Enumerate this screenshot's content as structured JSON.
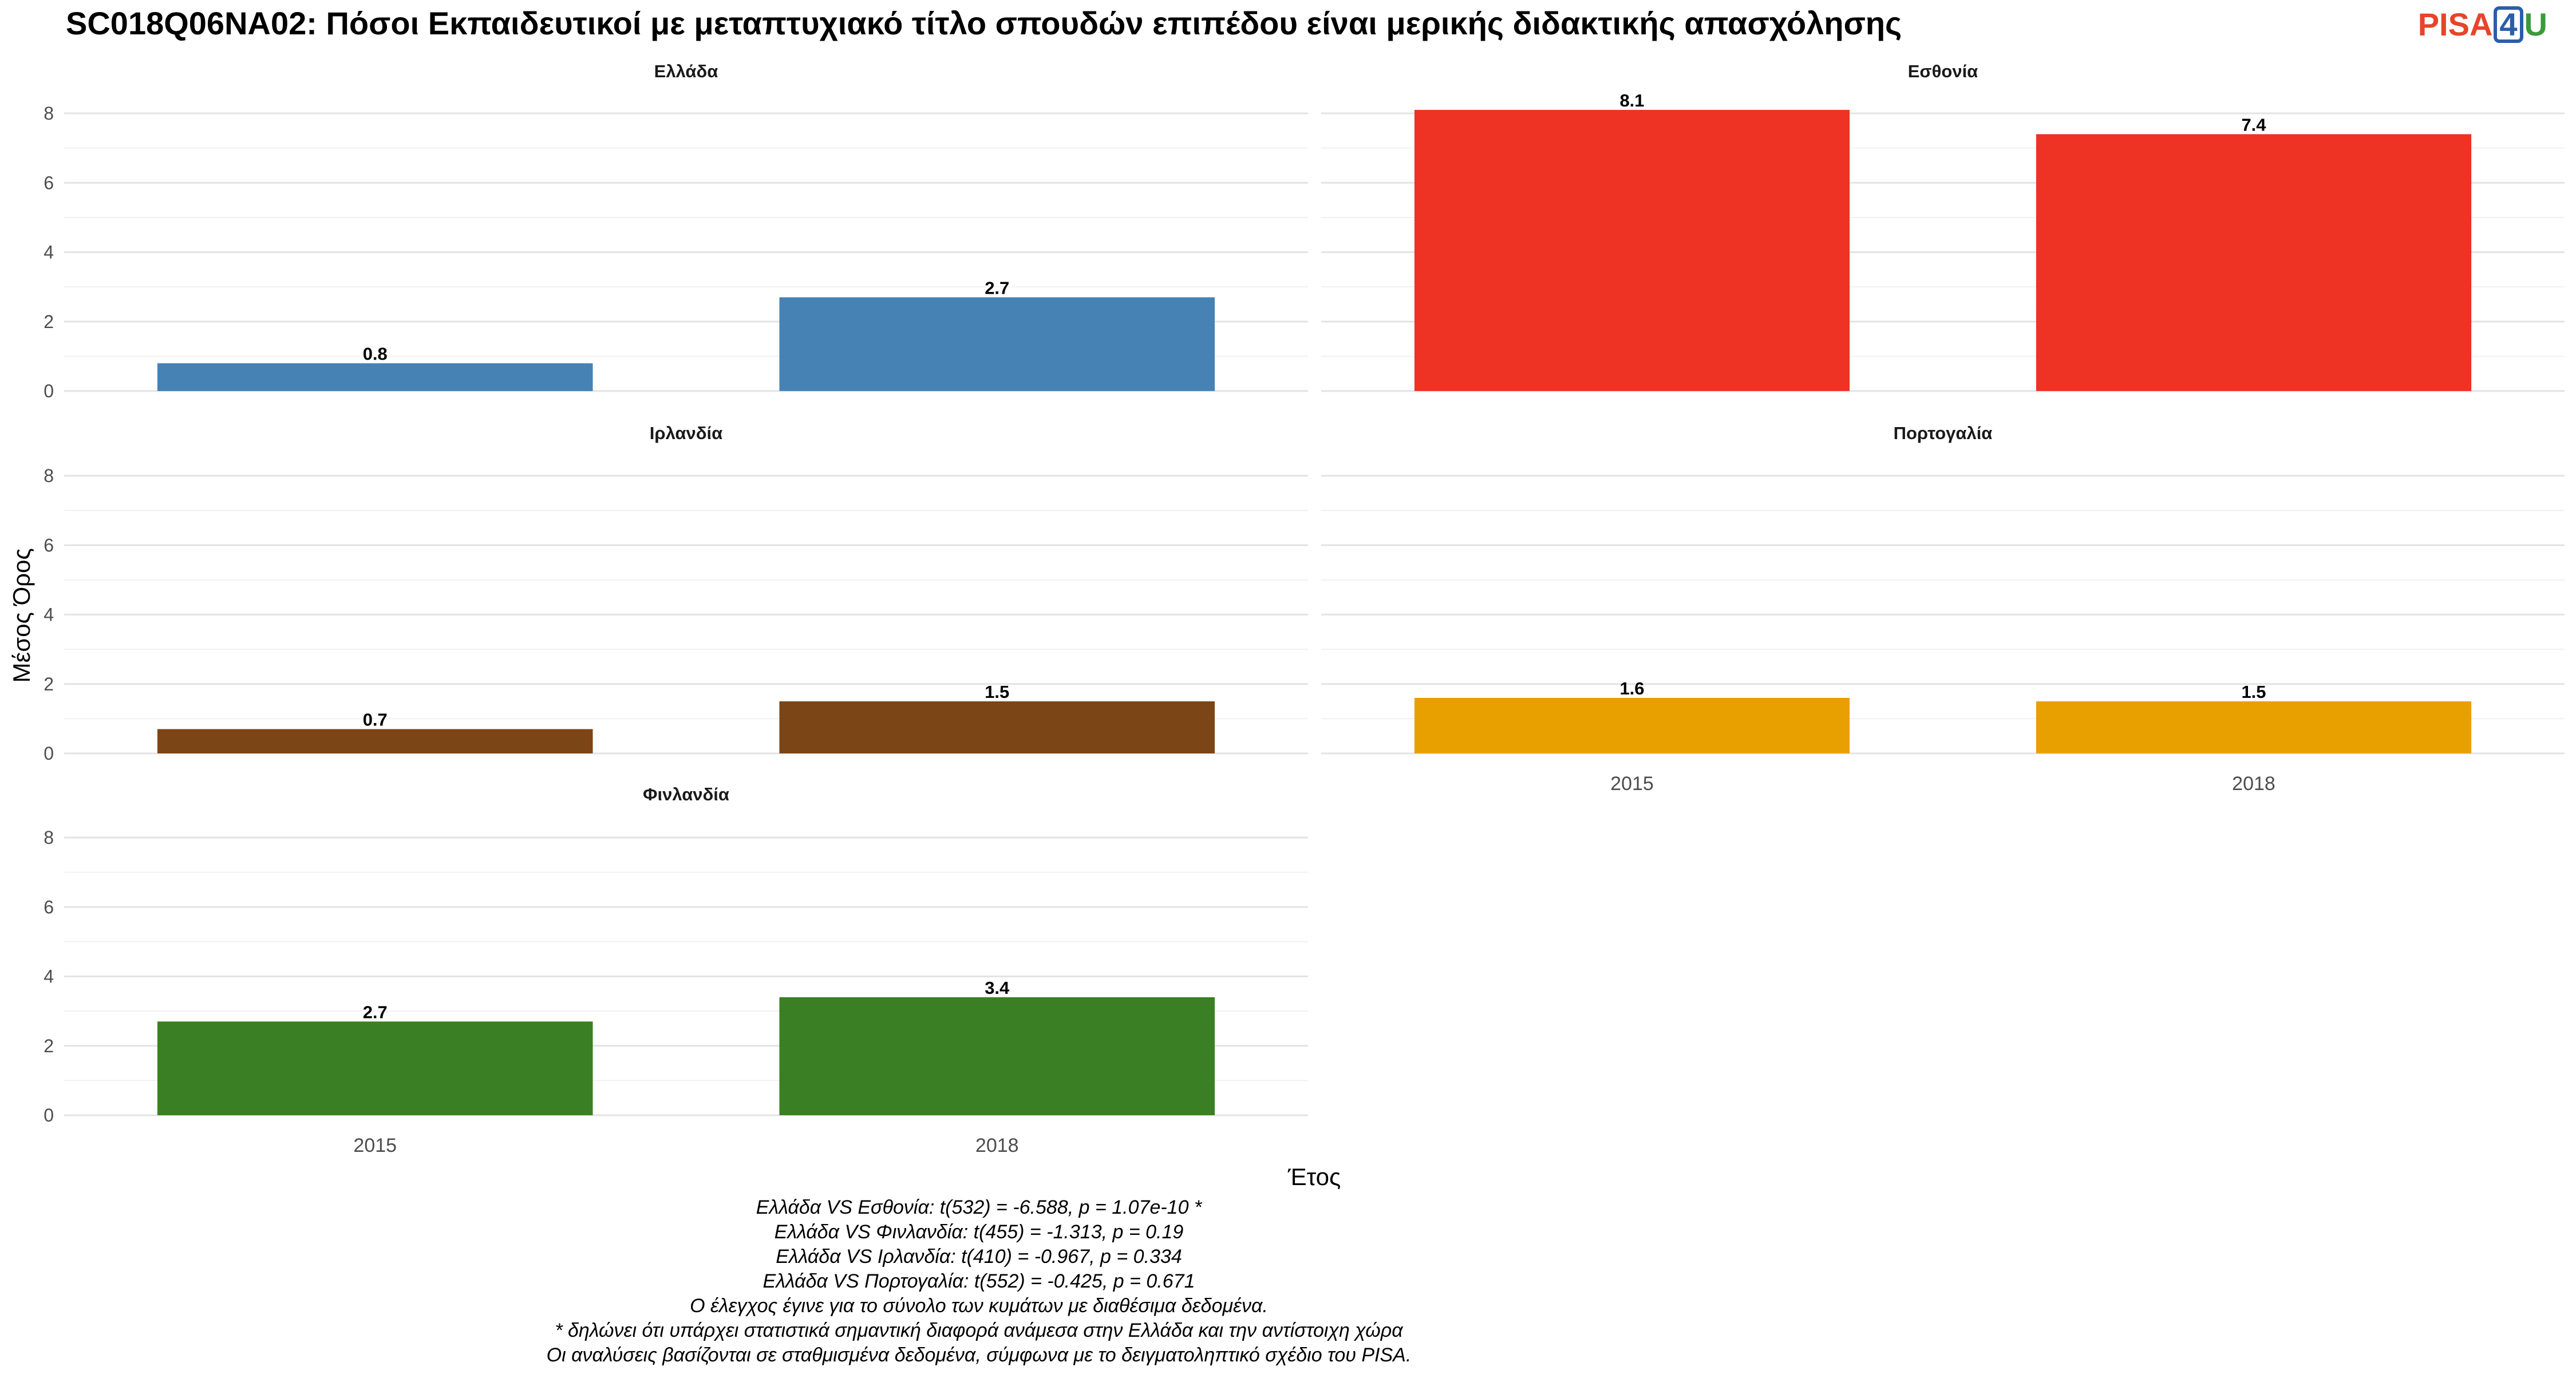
{
  "title": "SC018Q06NA02: Πόσοι Εκπαιδευτικοί με μεταπτυχιακό τίτλο σπουδών επιπέδου είναι μερικής διδακτικής απασχόλησης",
  "logo": {
    "text_a": "PISA",
    "text_b": "4",
    "text_c": "U",
    "colors": {
      "a": "#E8442A",
      "b": "#2A5EA8",
      "c": "#3A9A3A"
    }
  },
  "chart_data": {
    "type": "bar",
    "facets": [
      {
        "name": "Ελλάδα",
        "color": "#4682B4",
        "categories": [
          "2015",
          "2018"
        ],
        "values": [
          0.8,
          2.7
        ],
        "labels": [
          "0.8",
          "2.7"
        ]
      },
      {
        "name": "Εσθονία",
        "color": "#EE3224",
        "categories": [
          "2015",
          "2018"
        ],
        "values": [
          8.1,
          7.4
        ],
        "labels": [
          "8.1",
          "7.4"
        ]
      },
      {
        "name": "Ιρλανδία",
        "color": "#7B4516",
        "categories": [
          "2015",
          "2018"
        ],
        "values": [
          0.7,
          1.5
        ],
        "labels": [
          "0.7",
          "1.5"
        ]
      },
      {
        "name": "Πορτογαλία",
        "color": "#E8A000",
        "categories": [
          "2015",
          "2018"
        ],
        "values": [
          1.6,
          1.5
        ],
        "labels": [
          "1.6",
          "1.5"
        ]
      },
      {
        "name": "Φινλανδία",
        "color": "#3A7F23",
        "categories": [
          "2015",
          "2018"
        ],
        "values": [
          2.7,
          3.4
        ],
        "labels": [
          "2.7",
          "3.4"
        ]
      }
    ],
    "xlabel": "Έτος",
    "ylabel": "Μέσος Όρος",
    "ylim": [
      0,
      8
    ],
    "yticks": [
      "0",
      "2",
      "4",
      "6",
      "8"
    ],
    "grid": true,
    "legend": "none"
  },
  "notes": [
    "Ελλάδα VS Εσθονία: t(532) = -6.588, p = 1.07e-10 *",
    "Ελλάδα VS Φινλανδία: t(455) = -1.313, p = 0.19",
    "Ελλάδα VS Ιρλανδία: t(410) = -0.967, p = 0.334",
    "Ελλάδα VS Πορτογαλία: t(552) = -0.425, p = 0.671",
    "Ο έλεγχος έγινε για το σύνολο των κυμάτων με διαθέσιμα δεδομένα.",
    "* δηλώνει ότι υπάρχει στατιστικά σημαντική διαφορά ανάμεσα στην Ελλάδα και την αντίστοιχη χώρα",
    "Οι αναλύσεις βασίζονται σε σταθμισμένα δεδομένα, σύμφωνα με το δειγματοληπτικό σχέδιο του PISA."
  ]
}
